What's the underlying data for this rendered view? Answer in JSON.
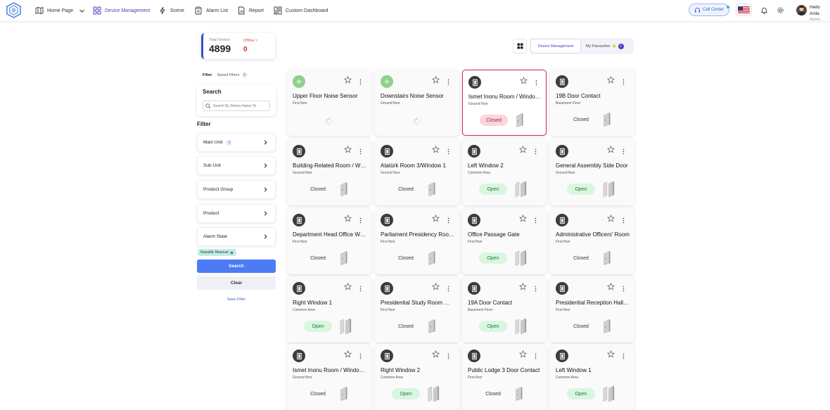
{
  "header": {
    "nav": [
      {
        "label": "Home Page",
        "icon": "map-icon"
      },
      {
        "label": "Device Management",
        "icon": "grid-icon"
      },
      {
        "label": "Scene",
        "icon": "scene-icon"
      },
      {
        "label": "Alarm List",
        "icon": "clipboard-icon"
      },
      {
        "label": "Report",
        "icon": "report-icon"
      },
      {
        "label": "Custom Dashboard",
        "icon": "dashboard-icon"
      }
    ],
    "call_center": "Call Center",
    "user_greeting": "Hello Arda",
    "user_role": "Admin"
  },
  "stats": {
    "total_label": "Total Device",
    "total_value": "4899",
    "offline_label": "Offline",
    "offline_value": "0"
  },
  "filter_tabs": {
    "filter": "Filter",
    "saved": "Saved Filters",
    "saved_count": "0"
  },
  "search": {
    "title": "Search",
    "placeholder": "Search By Device Name Or"
  },
  "filter_section": {
    "title": "Filter",
    "items": [
      {
        "label": "Main Unit",
        "count": "1"
      },
      {
        "label": "Sub Unit",
        "count": ""
      },
      {
        "label": "Product Group",
        "count": ""
      },
      {
        "label": "Product",
        "count": ""
      },
      {
        "label": "Alarm State",
        "count": ""
      }
    ],
    "tag": "Republic Museum",
    "search_button": "Search",
    "clear_button": "Clear",
    "save_filter": "Save Filter"
  },
  "view_tabs": {
    "device_management": "Device Management",
    "my_favourites": "My Favourites",
    "fav_count": "1"
  },
  "cards": [
    {
      "title": "Upper Floor Noise Sensor",
      "sub": "First floor",
      "type": "noise",
      "state": ""
    },
    {
      "title": "Downstairs Noise Sensor",
      "sub": "Ground floor",
      "type": "noise",
      "state": ""
    },
    {
      "title": "Ismet Inonu Room / Window 1",
      "sub": "Ground floor",
      "type": "door",
      "state": "Closed",
      "selected": true
    },
    {
      "title": "19B Door Contact",
      "sub": "Basement Floor",
      "type": "door",
      "state": "Closed"
    },
    {
      "title": "Building-Related Room / Window",
      "sub": "Ground floor",
      "type": "door",
      "state": "Closed"
    },
    {
      "title": "Atatürk Room 3/Window 1",
      "sub": "Ground floor",
      "type": "door",
      "state": "Closed"
    },
    {
      "title": "Left Window 2",
      "sub": "Common Area",
      "type": "door",
      "state": "Open"
    },
    {
      "title": "General Assembly Side Door",
      "sub": "Ground floor",
      "type": "door",
      "state": "Open"
    },
    {
      "title": "Department Head Office Window",
      "sub": "First floor",
      "type": "door",
      "state": "Closed"
    },
    {
      "title": "Parliament Presidency Room Window",
      "sub": "First floor",
      "type": "door",
      "state": "Closed"
    },
    {
      "title": "Office Passage Gate",
      "sub": "First floor",
      "type": "door",
      "state": "Open"
    },
    {
      "title": "Administrative Officers' Room",
      "sub": "First floor",
      "type": "door",
      "state": "Closed"
    },
    {
      "title": "Right Window 1",
      "sub": "Common Area",
      "type": "door",
      "state": "Open"
    },
    {
      "title": "Presidential Study Room Window",
      "sub": "First floor",
      "type": "door",
      "state": "Closed"
    },
    {
      "title": "19A Door Contact",
      "sub": "Basement Floor",
      "type": "door",
      "state": "Open"
    },
    {
      "title": "Presidential Reception Hall Window",
      "sub": "First floor",
      "type": "door",
      "state": "Closed"
    },
    {
      "title": "Ismet Inonu Room / Window 2",
      "sub": "Ground floor",
      "type": "door",
      "state": "Closed"
    },
    {
      "title": "Right Window 2",
      "sub": "Common Area",
      "type": "door",
      "state": "Open"
    },
    {
      "title": "Public Lodge 3 Door Contact",
      "sub": "First floor",
      "type": "door",
      "state": "Closed"
    },
    {
      "title": "Left Window 1",
      "sub": "Common Area",
      "type": "door",
      "state": "Open"
    }
  ]
}
